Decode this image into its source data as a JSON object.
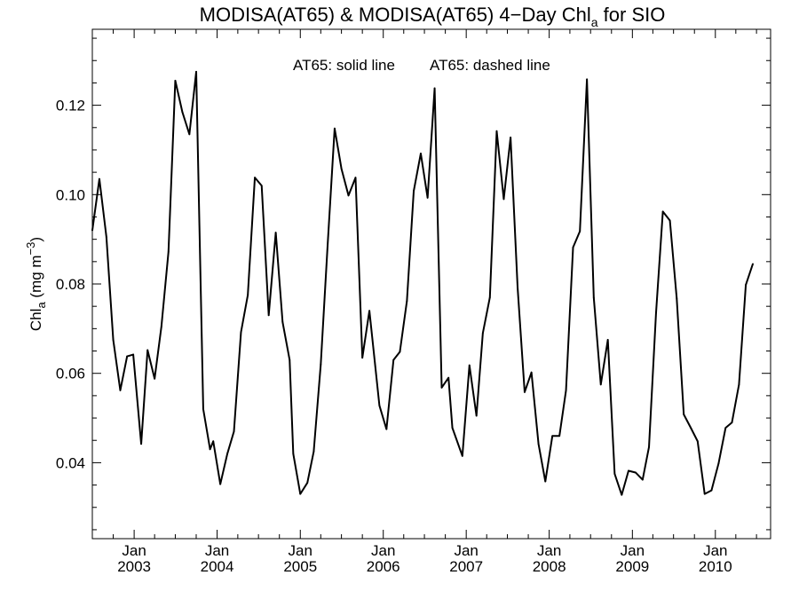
{
  "chart_data": {
    "type": "line",
    "title": {
      "main": "MODISA(AT65) & MODISA(AT65) 4−Day Chl",
      "subscript": "a",
      "suffix": " for SIO"
    },
    "legend_text": {
      "solid": "AT65: solid line",
      "dashed": "AT65: dashed line"
    },
    "ylabel": {
      "prefix": "Chl",
      "subscript": "a",
      "units": " (mg m",
      "superscript": "−3",
      "close": ")"
    },
    "xlabel": "",
    "ylim": [
      0.023,
      0.137
    ],
    "xlim": [
      "2002-07-01",
      "2010-09-01"
    ],
    "y_ticks": [
      0.04,
      0.06,
      0.08,
      0.1,
      0.12
    ],
    "y_tick_labels": [
      "0.04",
      "0.06",
      "0.08",
      "0.10",
      "0.12"
    ],
    "x_month_label": "Jan",
    "x_ticks": [
      {
        "date": "2003-01-01",
        "year": "2003"
      },
      {
        "date": "2004-01-01",
        "year": "2004"
      },
      {
        "date": "2005-01-01",
        "year": "2005"
      },
      {
        "date": "2006-01-01",
        "year": "2006"
      },
      {
        "date": "2007-01-01",
        "year": "2007"
      },
      {
        "date": "2008-01-01",
        "year": "2008"
      },
      {
        "date": "2009-01-01",
        "year": "2009"
      },
      {
        "date": "2010-01-01",
        "year": "2010"
      }
    ],
    "grid": false,
    "series": [
      {
        "line_style": "solid",
        "color": "#000000",
        "points": [
          [
            "2002-07-01",
            0.092
          ],
          [
            "2002-08-01",
            0.1035
          ],
          [
            "2002-09-01",
            0.0905
          ],
          [
            "2002-10-01",
            0.0675
          ],
          [
            "2002-11-01",
            0.0562
          ],
          [
            "2002-12-01",
            0.0638
          ],
          [
            "2002-12-28",
            0.0642
          ],
          [
            "2003-02-01",
            0.0442
          ],
          [
            "2003-03-01",
            0.0652
          ],
          [
            "2003-04-01",
            0.0588
          ],
          [
            "2003-05-01",
            0.0705
          ],
          [
            "2003-06-01",
            0.0872
          ],
          [
            "2003-07-01",
            0.1255
          ],
          [
            "2003-08-01",
            0.1185
          ],
          [
            "2003-09-01",
            0.1135
          ],
          [
            "2003-10-01",
            0.1275
          ],
          [
            "2003-11-01",
            0.052
          ],
          [
            "2003-12-01",
            0.043
          ],
          [
            "2003-12-15",
            0.0448
          ],
          [
            "2004-01-15",
            0.0352
          ],
          [
            "2004-02-15",
            0.042
          ],
          [
            "2004-03-15",
            0.047
          ],
          [
            "2004-04-15",
            0.0692
          ],
          [
            "2004-05-15",
            0.0775
          ],
          [
            "2004-06-15",
            0.1038
          ],
          [
            "2004-07-15",
            0.102
          ],
          [
            "2004-08-15",
            0.073
          ],
          [
            "2004-09-15",
            0.0915
          ],
          [
            "2004-10-15",
            0.0715
          ],
          [
            "2004-11-15",
            0.063
          ],
          [
            "2004-12-01",
            0.042
          ],
          [
            "2005-01-01",
            0.033
          ],
          [
            "2005-02-01",
            0.0355
          ],
          [
            "2005-03-01",
            0.0425
          ],
          [
            "2005-04-01",
            0.062
          ],
          [
            "2005-05-01",
            0.0885
          ],
          [
            "2005-06-01",
            0.1148
          ],
          [
            "2005-07-01",
            0.1058
          ],
          [
            "2005-08-01",
            0.0998
          ],
          [
            "2005-09-01",
            0.1038
          ],
          [
            "2005-10-01",
            0.0635
          ],
          [
            "2005-11-01",
            0.074
          ],
          [
            "2005-12-15",
            0.0528
          ],
          [
            "2006-01-15",
            0.0475
          ],
          [
            "2006-02-15",
            0.063
          ],
          [
            "2006-03-15",
            0.0648
          ],
          [
            "2006-04-15",
            0.0762
          ],
          [
            "2006-05-15",
            0.1008
          ],
          [
            "2006-06-15",
            0.1092
          ],
          [
            "2006-07-15",
            0.0993
          ],
          [
            "2006-08-15",
            0.1238
          ],
          [
            "2006-09-15",
            0.0568
          ],
          [
            "2006-10-15",
            0.059
          ],
          [
            "2006-11-01",
            0.0478
          ],
          [
            "2006-12-15",
            0.0415
          ],
          [
            "2007-01-15",
            0.0618
          ],
          [
            "2007-02-15",
            0.0505
          ],
          [
            "2007-03-15",
            0.069
          ],
          [
            "2007-04-15",
            0.077
          ],
          [
            "2007-05-15",
            0.1142
          ],
          [
            "2007-06-15",
            0.099
          ],
          [
            "2007-07-15",
            0.1128
          ],
          [
            "2007-08-15",
            0.0792
          ],
          [
            "2007-09-15",
            0.0558
          ],
          [
            "2007-10-15",
            0.0602
          ],
          [
            "2007-11-15",
            0.0442
          ],
          [
            "2007-12-15",
            0.0358
          ],
          [
            "2008-01-15",
            0.046
          ],
          [
            "2008-02-15",
            0.046
          ],
          [
            "2008-03-15",
            0.0562
          ],
          [
            "2008-04-15",
            0.0882
          ],
          [
            "2008-05-15",
            0.0918
          ],
          [
            "2008-06-15",
            0.1258
          ],
          [
            "2008-07-15",
            0.077
          ],
          [
            "2008-08-15",
            0.0575
          ],
          [
            "2008-09-15",
            0.0675
          ],
          [
            "2008-10-15",
            0.0375
          ],
          [
            "2008-11-15",
            0.0328
          ],
          [
            "2008-12-15",
            0.0382
          ],
          [
            "2009-01-15",
            0.0378
          ],
          [
            "2009-02-15",
            0.0362
          ],
          [
            "2009-03-15",
            0.0435
          ],
          [
            "2009-04-15",
            0.0735
          ],
          [
            "2009-05-15",
            0.0962
          ],
          [
            "2009-06-15",
            0.0942
          ],
          [
            "2009-07-15",
            0.0768
          ],
          [
            "2009-08-15",
            0.0508
          ],
          [
            "2009-09-15",
            0.0478
          ],
          [
            "2009-10-15",
            0.0448
          ],
          [
            "2009-11-15",
            0.033
          ],
          [
            "2009-12-15",
            0.0338
          ],
          [
            "2010-01-15",
            0.0398
          ],
          [
            "2010-02-15",
            0.0478
          ],
          [
            "2010-03-15",
            0.049
          ],
          [
            "2010-04-15",
            0.0575
          ],
          [
            "2010-05-15",
            0.0798
          ],
          [
            "2010-06-15",
            0.0845
          ]
        ]
      }
    ]
  }
}
